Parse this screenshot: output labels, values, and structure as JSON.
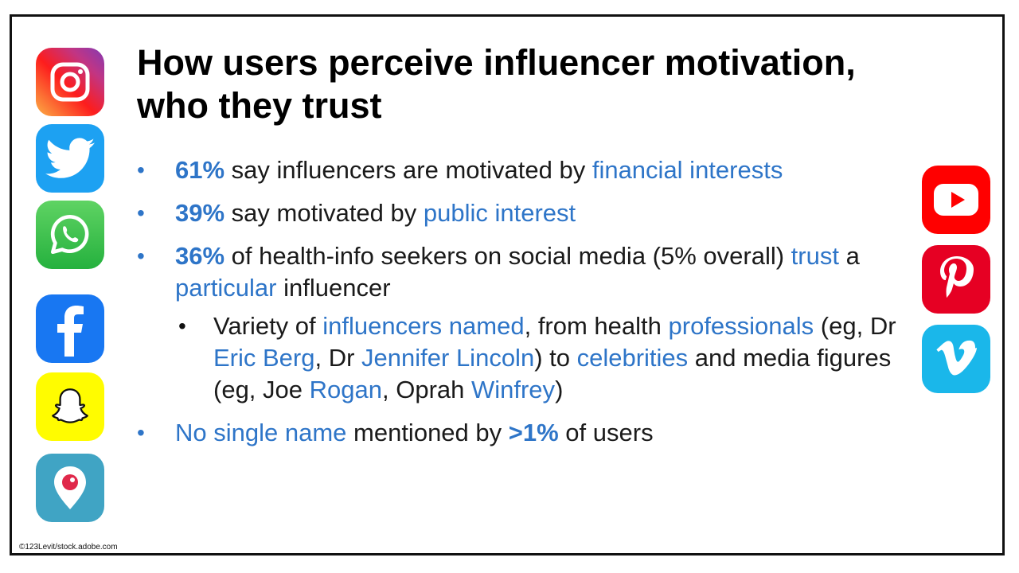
{
  "title": "How users perceive influencer motivation, who they trust",
  "bullets": [
    {
      "parts": [
        {
          "text": "61%",
          "style": "blue-bold"
        },
        {
          "text": " say influencers are motivated by ",
          "style": "plain"
        },
        {
          "text": "financial interests",
          "style": "blue"
        }
      ]
    },
    {
      "parts": [
        {
          "text": "39%",
          "style": "blue-bold"
        },
        {
          "text": " say motivated by ",
          "style": "plain"
        },
        {
          "text": "public interest",
          "style": "blue"
        }
      ]
    },
    {
      "parts": [
        {
          "text": "36%",
          "style": "blue-bold"
        },
        {
          "text": " of health-info seekers on social media (5% overall) ",
          "style": "plain"
        },
        {
          "text": "trust",
          "style": "blue"
        },
        {
          "text": " a ",
          "style": "plain"
        },
        {
          "text": "particular",
          "style": "blue"
        },
        {
          "text": " influencer",
          "style": "plain"
        }
      ],
      "sub": {
        "parts": [
          {
            "text": "Variety of ",
            "style": "plain"
          },
          {
            "text": "influencers named",
            "style": "blue"
          },
          {
            "text": ", from health ",
            "style": "plain"
          },
          {
            "text": "professionals",
            "style": "blue"
          },
          {
            "text": " (eg, Dr ",
            "style": "plain"
          },
          {
            "text": "Eric Berg",
            "style": "blue"
          },
          {
            "text": ", Dr ",
            "style": "plain"
          },
          {
            "text": "Jennifer Lincoln",
            "style": "blue"
          },
          {
            "text": ") to ",
            "style": "plain"
          },
          {
            "text": "celebrities",
            "style": "blue"
          },
          {
            "text": " and media figures (eg, Joe ",
            "style": "plain"
          },
          {
            "text": "Rogan",
            "style": "blue"
          },
          {
            "text": ", Oprah ",
            "style": "plain"
          },
          {
            "text": "Winfrey",
            "style": "blue"
          },
          {
            "text": ")",
            "style": "plain"
          }
        ]
      }
    },
    {
      "parts": [
        {
          "text": "No single name",
          "style": "blue"
        },
        {
          "text": " mentioned by ",
          "style": "plain"
        },
        {
          "text": ">1%",
          "style": "blue-bold"
        },
        {
          "text": " of users",
          "style": "plain"
        }
      ]
    }
  ],
  "credit": "©123Levit/stock.adobe.com",
  "colors": {
    "accent": "#2e75c8",
    "text": "#1a1a1a"
  },
  "icons_left": [
    "instagram-icon",
    "twitter-icon",
    "whatsapp-icon",
    "facebook-icon",
    "snapchat-icon",
    "periscope-icon"
  ],
  "icons_right": [
    "youtube-icon",
    "pinterest-icon",
    "vimeo-icon"
  ]
}
